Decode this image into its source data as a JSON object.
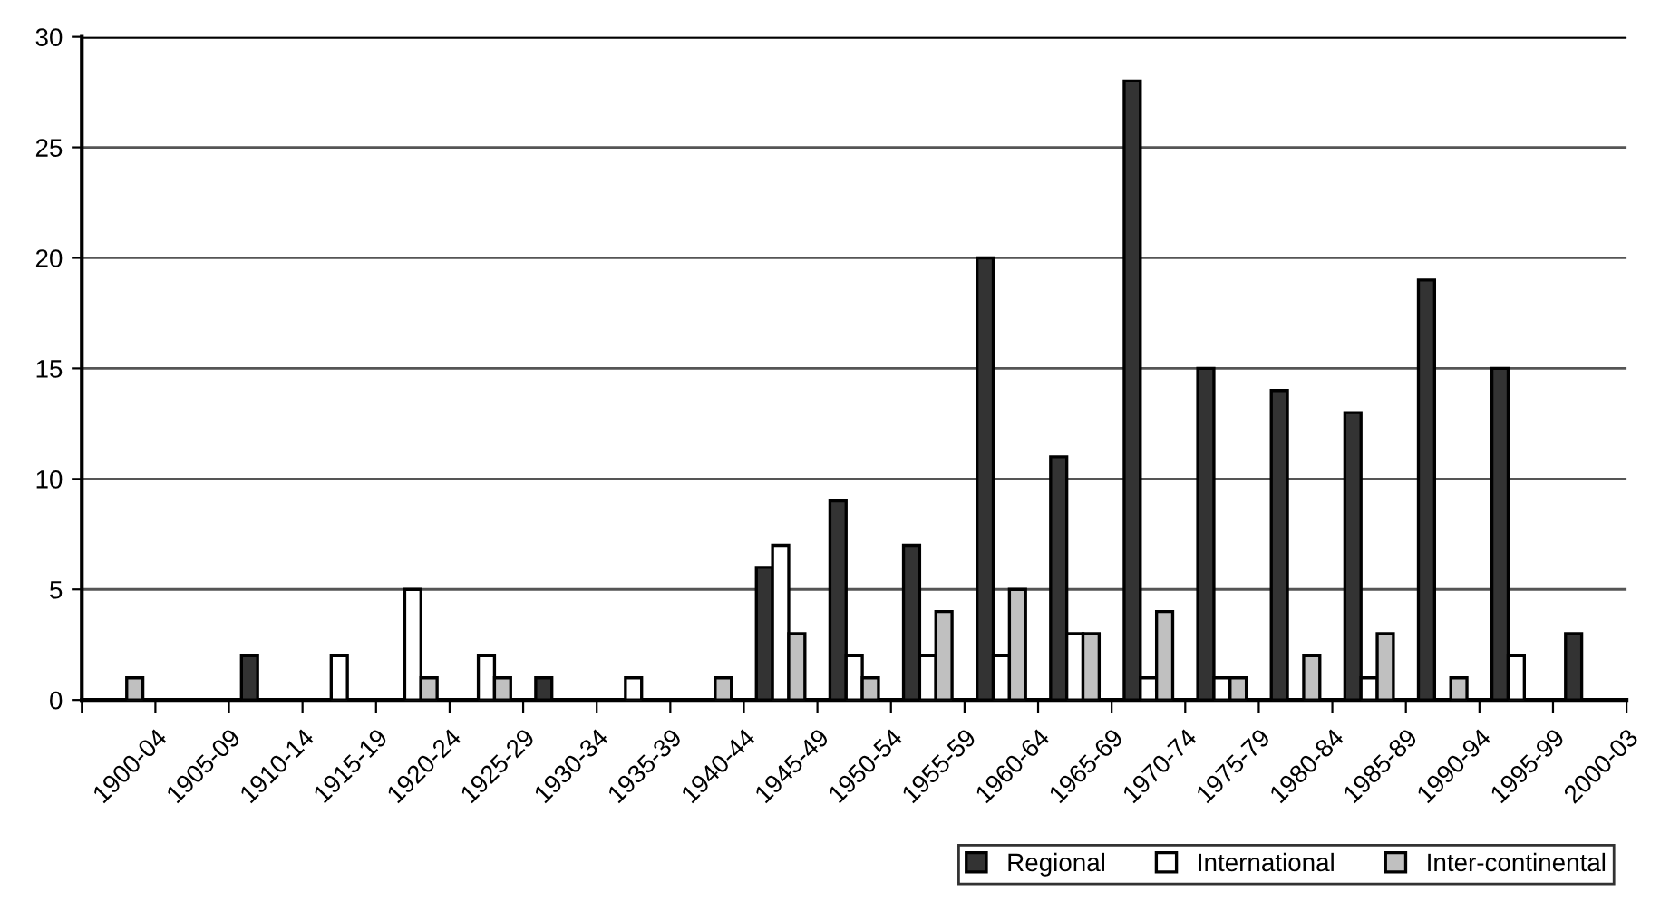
{
  "chart_data": {
    "type": "bar",
    "categories": [
      "1900-04",
      "1905-09",
      "1910-14",
      "1915-19",
      "1920-24",
      "1925-29",
      "1930-34",
      "1935-39",
      "1940-44",
      "1945-49",
      "1950-54",
      "1955-59",
      "1960-64",
      "1965-69",
      "1970-74",
      "1975-79",
      "1980-84",
      "1985-89",
      "1990-94",
      "1995-99",
      "2000-03"
    ],
    "series": [
      {
        "name": "Regional",
        "color": "#333333",
        "values": [
          0,
          0,
          2,
          0,
          0,
          0,
          1,
          0,
          0,
          6,
          9,
          7,
          20,
          11,
          28,
          15,
          14,
          13,
          19,
          15,
          3
        ]
      },
      {
        "name": "International",
        "color": "#ffffff",
        "values": [
          0,
          0,
          0,
          2,
          5,
          2,
          0,
          1,
          0,
          7,
          2,
          2,
          2,
          3,
          1,
          1,
          0,
          1,
          0,
          2,
          0
        ]
      },
      {
        "name": "Inter-continental",
        "color": "#c0c0c0",
        "values": [
          1,
          0,
          0,
          0,
          1,
          1,
          0,
          0,
          1,
          3,
          1,
          4,
          5,
          3,
          4,
          1,
          2,
          3,
          1,
          0,
          0
        ]
      }
    ],
    "ylim": [
      0,
      30
    ],
    "yticks": [
      0,
      5,
      10,
      15,
      20,
      25,
      30
    ],
    "grid": "y",
    "legend": "bottom right"
  }
}
